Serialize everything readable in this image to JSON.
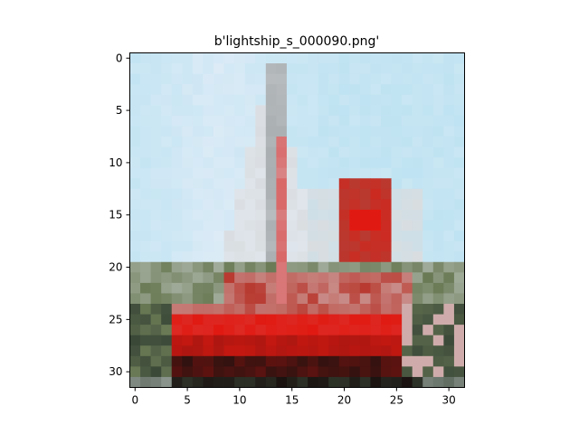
{
  "chart_data": {
    "type": "heatmap",
    "title": "b'lightship_s_000090.png'",
    "xlabel": "",
    "ylabel": "",
    "image_size": [
      32,
      32
    ],
    "xlim": [
      -0.5,
      31.5
    ],
    "ylim": [
      31.5,
      -0.5
    ],
    "x_ticks": [
      0,
      5,
      10,
      15,
      20,
      25,
      30
    ],
    "y_ticks": [
      0,
      5,
      10,
      15,
      20,
      25,
      30
    ],
    "x_tick_labels": [
      "0",
      "5",
      "10",
      "15",
      "20",
      "25",
      "30"
    ],
    "y_tick_labels": [
      "0",
      "5",
      "10",
      "15",
      "20",
      "25",
      "30"
    ],
    "grid": false,
    "legend": "none",
    "colors": {
      "sky": "#bfe3f2",
      "sky_light": "#e6eef8",
      "cloud": "#d9dde0",
      "mast": "#a9aeb0",
      "mast_red": "#d94a4a",
      "hull_red": "#e01a12",
      "hull_dark": "#8a1410",
      "waterline": "#1a1210",
      "shore_green": "#6a7a55",
      "shore_dark": "#3a4838",
      "structure_red": "#b83a30"
    }
  }
}
